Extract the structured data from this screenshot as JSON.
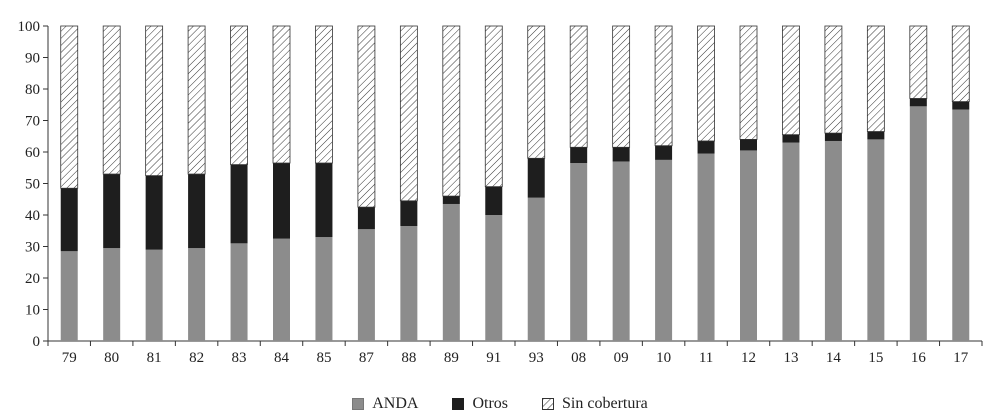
{
  "chart_data": {
    "type": "bar",
    "stacked": true,
    "categories": [
      "79",
      "80",
      "81",
      "82",
      "83",
      "84",
      "85",
      "87",
      "88",
      "89",
      "91",
      "93",
      "08",
      "09",
      "10",
      "11",
      "12",
      "13",
      "14",
      "15",
      "16",
      "17"
    ],
    "series": [
      {
        "name": "ANDA",
        "color": "#8c8c8c",
        "values": [
          28.5,
          29.5,
          29,
          29.5,
          31,
          32.5,
          33,
          35.5,
          36.5,
          43.5,
          40,
          45.5,
          56.5,
          57,
          57.5,
          59.5,
          60.5,
          63,
          63.5,
          64,
          74.5,
          73.5
        ]
      },
      {
        "name": "Otros",
        "color": "#1e1e1e",
        "values": [
          20,
          23.5,
          23.5,
          23.5,
          25,
          24,
          23.5,
          7,
          8,
          2.5,
          9,
          12.5,
          5,
          4.5,
          4.5,
          4,
          3.5,
          2.5,
          2.5,
          2.5,
          2.5,
          2.5
        ]
      },
      {
        "name": "Sin cobertura",
        "pattern": "diagonal-hatch",
        "values": [
          51.5,
          47,
          47.5,
          47,
          44,
          43.5,
          43.5,
          57.5,
          55.5,
          54,
          51,
          42,
          38.5,
          38.5,
          38,
          36.5,
          36,
          34.5,
          34,
          33.5,
          23,
          24
        ]
      }
    ],
    "ylim": [
      0,
      100
    ],
    "yticks": [
      0,
      10,
      20,
      30,
      40,
      50,
      60,
      70,
      80,
      90,
      100
    ],
    "grid": false,
    "legend_position": "bottom-center"
  }
}
